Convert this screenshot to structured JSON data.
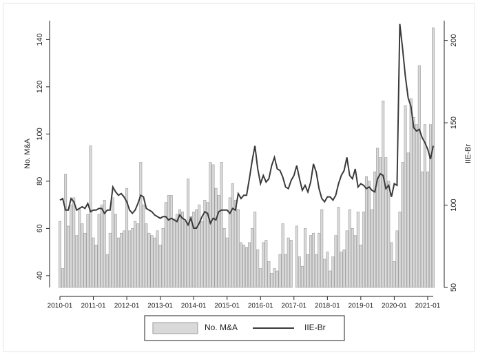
{
  "chart_data": {
    "type": "bar",
    "y_label": "No. M&A",
    "y2_label": "IIE-Br",
    "categories": [
      "2010-01",
      null,
      null,
      null,
      null,
      null,
      null,
      null,
      null,
      null,
      null,
      null,
      "2011-01",
      null,
      null,
      null,
      null,
      null,
      null,
      null,
      null,
      null,
      null,
      null,
      "2012-01",
      null,
      null,
      null,
      null,
      null,
      null,
      null,
      null,
      null,
      null,
      null,
      "2013-01",
      null,
      null,
      null,
      null,
      null,
      null,
      null,
      null,
      null,
      null,
      null,
      "2014-01",
      null,
      null,
      null,
      null,
      null,
      null,
      null,
      null,
      null,
      null,
      null,
      "2015-01",
      null,
      null,
      null,
      null,
      null,
      null,
      null,
      null,
      null,
      null,
      null,
      "2016-01",
      null,
      null,
      null,
      null,
      null,
      null,
      null,
      null,
      null,
      null,
      null,
      "2017-01",
      null,
      null,
      null,
      null,
      null,
      null,
      null,
      null,
      null,
      null,
      null,
      "2018-01",
      null,
      null,
      null,
      null,
      null,
      null,
      null,
      null,
      null,
      null,
      null,
      "2019-01",
      null,
      null,
      null,
      null,
      null,
      null,
      null,
      null,
      null,
      null,
      null,
      "2020-01",
      null,
      null,
      null,
      null,
      null,
      null,
      null,
      null,
      null,
      null,
      null,
      "2021-01",
      null,
      null
    ],
    "series": [
      {
        "name": "No. M&A",
        "type": "bar",
        "color": "#d9d9d9",
        "values": [
          63,
          43,
          83,
          61,
          70,
          73,
          57,
          68,
          62,
          58,
          66,
          95,
          56,
          53,
          66,
          70,
          72,
          49,
          58,
          73,
          66,
          56,
          58,
          59,
          77,
          59,
          60,
          63,
          62,
          88,
          70,
          62,
          58,
          57,
          56,
          59,
          53,
          60,
          71,
          74,
          74,
          64,
          66,
          68,
          67,
          63,
          81,
          65,
          67,
          68,
          70,
          63,
          72,
          71,
          88,
          87,
          77,
          74,
          88,
          60,
          56,
          73,
          79,
          72,
          68,
          54,
          53,
          52,
          54,
          60,
          67,
          51,
          43,
          54,
          55,
          46,
          41,
          43,
          42,
          49,
          62,
          49,
          56,
          55,
          null,
          61,
          48,
          44,
          60,
          49,
          57,
          58,
          49,
          58,
          68,
          47,
          50,
          42,
          48,
          57,
          69,
          50,
          51,
          59,
          68,
          60,
          57,
          67,
          53,
          67,
          82,
          80,
          68,
          84,
          94,
          90,
          114,
          90,
          80,
          54,
          46,
          59,
          67,
          88,
          112,
          92,
          115,
          107,
          104,
          129,
          84,
          104,
          84,
          104,
          145
        ]
      },
      {
        "name": "IIE-Br",
        "type": "line",
        "axis": "y2",
        "color": "#3a3a3a",
        "values": [
          103,
          104,
          97,
          97,
          104,
          102,
          97,
          98,
          99,
          98,
          101,
          96,
          97,
          97,
          98,
          98,
          95,
          97,
          97,
          111,
          108,
          106,
          107,
          105,
          102,
          97,
          95,
          97,
          101,
          106,
          105,
          98,
          97,
          96,
          94,
          93,
          92,
          93,
          93,
          91,
          92,
          91,
          90,
          94,
          92,
          91,
          88,
          92,
          86,
          86,
          89,
          93,
          96,
          95,
          89,
          92,
          91,
          96,
          97,
          97,
          97,
          95,
          98,
          97,
          107,
          104,
          106,
          106,
          116,
          127,
          136,
          122,
          113,
          118,
          114,
          116,
          124,
          129,
          122,
          121,
          117,
          111,
          110,
          115,
          118,
          124,
          116,
          109,
          112,
          108,
          114,
          125,
          120,
          110,
          104,
          102,
          105,
          105,
          103,
          106,
          113,
          118,
          121,
          129,
          118,
          116,
          122,
          111,
          113,
          112,
          110,
          111,
          109,
          108,
          116,
          119,
          118,
          110,
          112,
          105,
          113,
          112,
          210,
          195,
          178,
          165,
          160,
          147,
          145,
          146,
          141,
          138,
          134,
          128,
          136
        ]
      }
    ],
    "ylim": [
      35,
      148
    ],
    "yticks": [
      40,
      60,
      80,
      100,
      120,
      140
    ],
    "y2lim": [
      50,
      212
    ],
    "y2ticks": [
      50,
      100,
      150,
      200
    ]
  }
}
